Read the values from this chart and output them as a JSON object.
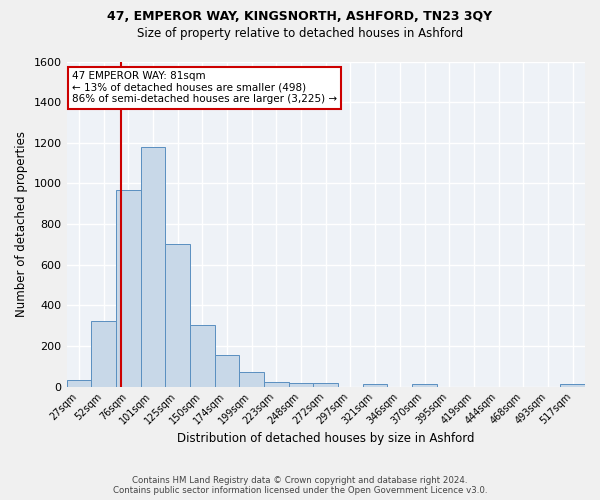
{
  "title1": "47, EMPEROR WAY, KINGSNORTH, ASHFORD, TN23 3QY",
  "title2": "Size of property relative to detached houses in Ashford",
  "xlabel": "Distribution of detached houses by size in Ashford",
  "ylabel": "Number of detached properties",
  "categories": [
    "27sqm",
    "52sqm",
    "76sqm",
    "101sqm",
    "125sqm",
    "150sqm",
    "174sqm",
    "199sqm",
    "223sqm",
    "248sqm",
    "272sqm",
    "297sqm",
    "321sqm",
    "346sqm",
    "370sqm",
    "395sqm",
    "419sqm",
    "444sqm",
    "468sqm",
    "493sqm",
    "517sqm"
  ],
  "values": [
    30,
    325,
    970,
    1180,
    700,
    305,
    155,
    70,
    25,
    18,
    20,
    0,
    15,
    0,
    15,
    0,
    0,
    0,
    0,
    0,
    15
  ],
  "bar_color": "#c8d8e8",
  "bar_edge_color": "#5a8fc0",
  "annotation_line1": "47 EMPEROR WAY: 81sqm",
  "annotation_line2": "← 13% of detached houses are smaller (498)",
  "annotation_line3": "86% of semi-detached houses are larger (3,225) →",
  "annotation_box_color": "#ffffff",
  "annotation_box_edge_color": "#cc0000",
  "ylim": [
    0,
    1600
  ],
  "yticks": [
    0,
    200,
    400,
    600,
    800,
    1000,
    1200,
    1400,
    1600
  ],
  "bg_color": "#eef2f7",
  "grid_color": "#ffffff",
  "footer1": "Contains HM Land Registry data © Crown copyright and database right 2024.",
  "footer2": "Contains public sector information licensed under the Open Government Licence v3.0.",
  "fig_width": 6.0,
  "fig_height": 5.0,
  "dpi": 100
}
